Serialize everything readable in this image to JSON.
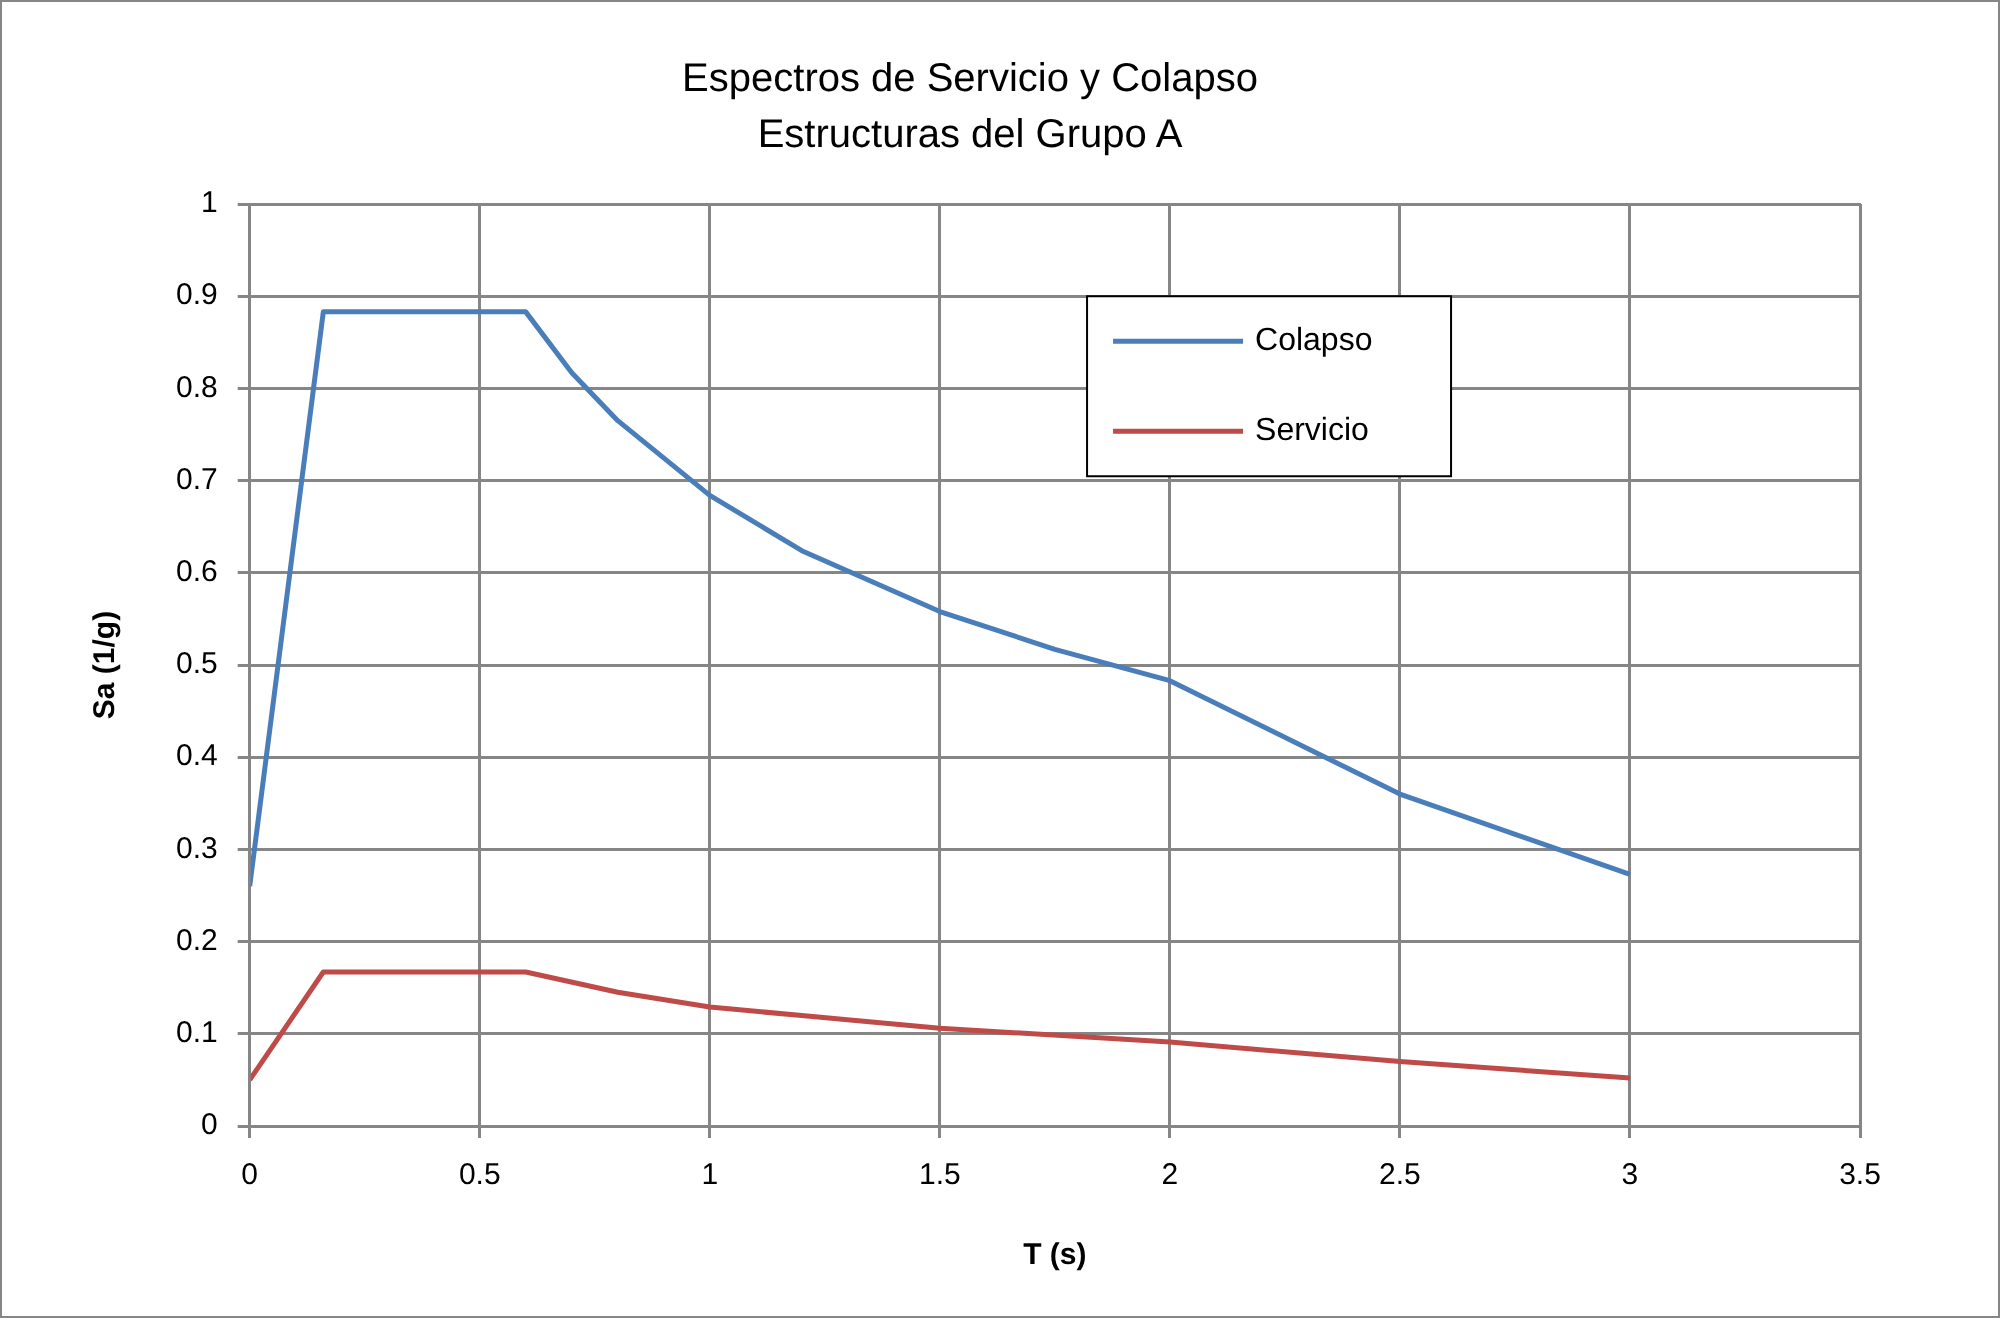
{
  "chart_data": {
    "type": "line",
    "title": "Espectros de Servicio y Colapso",
    "subtitle": "Estructuras del Grupo A",
    "xlabel": "T (s)",
    "ylabel": "Sa (1/g)",
    "xlim": [
      0,
      3.5
    ],
    "xticks": [
      0,
      0.5,
      1,
      1.5,
      2,
      2.5,
      3,
      3.5
    ],
    "ylim": [
      0,
      1
    ],
    "yticks": [
      0,
      0.1,
      0.2,
      0.3,
      0.4,
      0.5,
      0.6,
      0.7,
      0.8,
      0.9,
      1
    ],
    "grid": true,
    "legend": "top right",
    "marker": "none",
    "line_style": "solid",
    "series": [
      {
        "name": "Colapso",
        "color": "#4a7ebb",
        "x": [
          0,
          0.16,
          0.6,
          0.7,
          0.8,
          1,
          1.2,
          1.5,
          1.75,
          2,
          2.5,
          3
        ],
        "values": [
          0.26,
          0.883,
          0.883,
          0.817,
          0.765,
          0.684,
          0.624,
          0.558,
          0.517,
          0.483,
          0.36,
          0.273
        ]
      },
      {
        "name": "Servicio",
        "color": "#be4b48",
        "x": [
          0,
          0.16,
          0.6,
          0.8,
          1,
          1.5,
          2,
          2.5,
          3
        ],
        "values": [
          0.05,
          0.167,
          0.167,
          0.145,
          0.129,
          0.106,
          0.091,
          0.07,
          0.052
        ]
      }
    ]
  }
}
